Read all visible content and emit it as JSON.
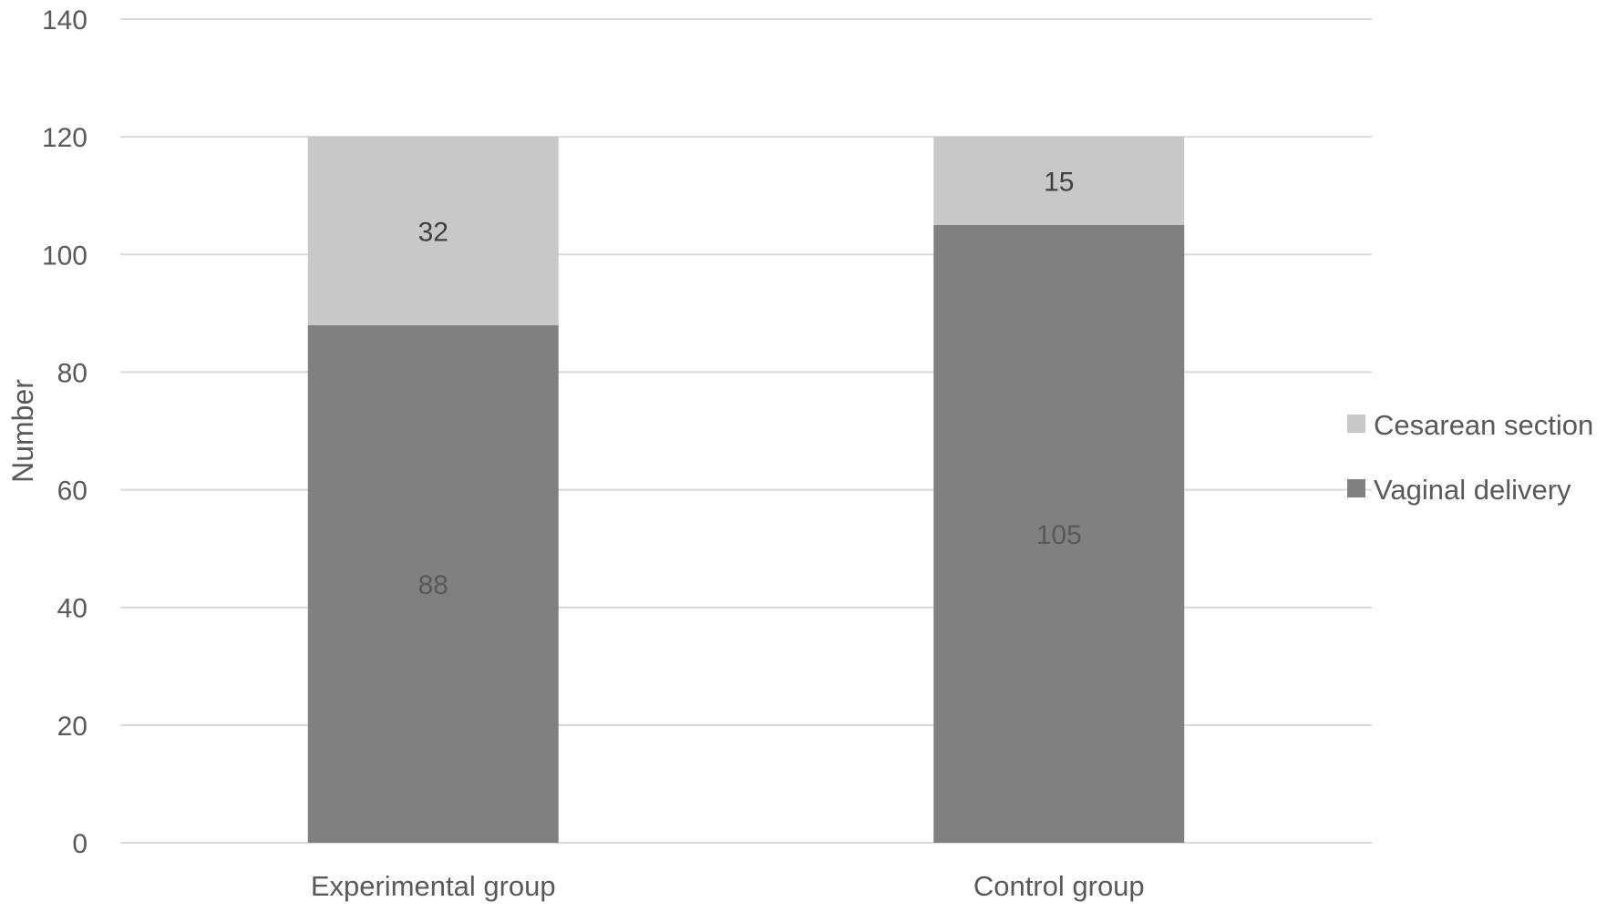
{
  "chart_data": {
    "type": "bar",
    "stacked": true,
    "categories": [
      "Experimental group",
      "Control group"
    ],
    "series": [
      {
        "name": "Vaginal delivery",
        "values": [
          88,
          105
        ],
        "color": "#808080",
        "label_color": "#595959"
      },
      {
        "name": "Cesarean section",
        "values": [
          32,
          15
        ],
        "color": "#c8c8c8",
        "label_color": "#404040"
      }
    ],
    "ylabel": "Number",
    "xlabel": "",
    "ylim": [
      0,
      140
    ],
    "yticks": [
      0,
      20,
      40,
      60,
      80,
      100,
      120,
      140
    ],
    "grid": true,
    "legend_position": "right",
    "legend_order": [
      "Cesarean section",
      "Vaginal delivery"
    ]
  }
}
